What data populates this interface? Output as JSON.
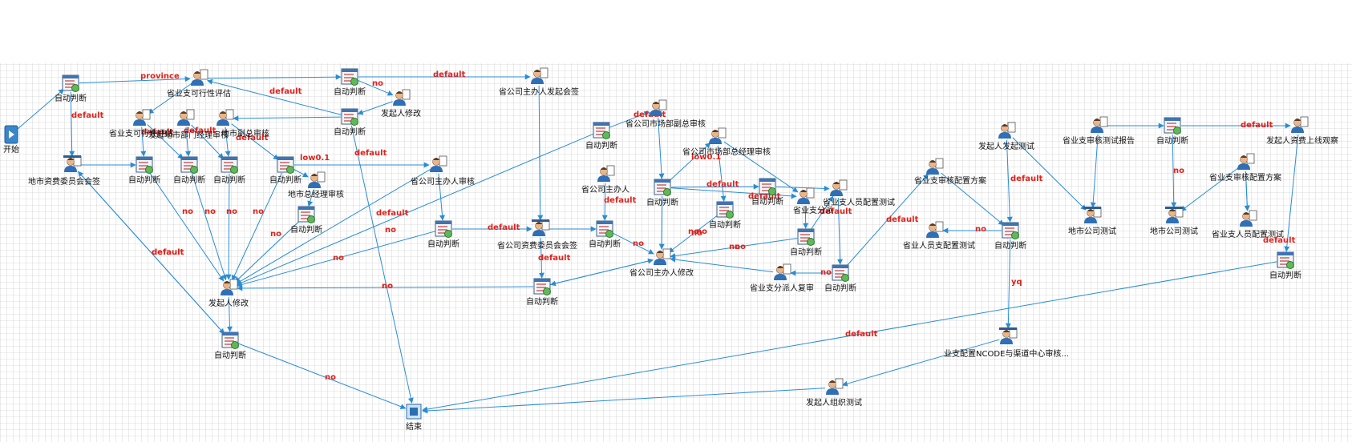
{
  "diagram": {
    "nodes": [
      {
        "id": "n0",
        "label": "开始",
        "icon": "start-icon"
      },
      {
        "id": "n1",
        "label": "自动判断",
        "icon": "auto-judge-icon"
      },
      {
        "id": "n2",
        "label": "省业支可行性评估",
        "icon": "user-task-icon"
      },
      {
        "id": "n3",
        "label": "自动判断",
        "icon": "auto-judge-icon"
      },
      {
        "id": "n4",
        "label": "发起人修改",
        "icon": "user-task-icon"
      },
      {
        "id": "n5",
        "label": "自动判断",
        "icon": "auto-judge-icon"
      },
      {
        "id": "n6",
        "label": "省公司主办人发起会签",
        "icon": "user-task-icon"
      },
      {
        "id": "n7",
        "label": "省业支可行性评估",
        "icon": "user-task-icon"
      },
      {
        "id": "n8",
        "label": "发起地市部门经理审核",
        "icon": "user-task-icon"
      },
      {
        "id": "n9",
        "label": "地市副总审核",
        "icon": "user-task-icon"
      },
      {
        "id": "n10",
        "label": "地市资费委员会会签",
        "icon": "countersign-icon"
      },
      {
        "id": "n11",
        "label": "自动判断",
        "icon": "auto-judge-icon"
      },
      {
        "id": "n12",
        "label": "自动判断",
        "icon": "auto-judge-icon"
      },
      {
        "id": "n13",
        "label": "自动判断",
        "icon": "auto-judge-icon"
      },
      {
        "id": "n14",
        "label": "自动判断",
        "icon": "auto-judge-icon"
      },
      {
        "id": "n15",
        "label": "地市总经理审核",
        "icon": "user-task-icon"
      },
      {
        "id": "n16",
        "label": "自动判断",
        "icon": "auto-judge-icon"
      },
      {
        "id": "n17",
        "label": "省公司主办人审核",
        "icon": "user-task-icon"
      },
      {
        "id": "n18",
        "label": "发起人修改",
        "icon": "user-task-icon"
      },
      {
        "id": "n19",
        "label": "自动判断",
        "icon": "auto-judge-icon"
      },
      {
        "id": "n20",
        "label": "结束",
        "icon": "end-icon"
      },
      {
        "id": "n21",
        "label": "自动判断",
        "icon": "auto-judge-icon"
      },
      {
        "id": "n22",
        "label": "省公司资费委员会会签",
        "icon": "countersign-icon"
      },
      {
        "id": "n23",
        "label": "自动判断",
        "icon": "auto-judge-icon"
      },
      {
        "id": "n24",
        "label": "自动判断",
        "icon": "auto-judge-icon"
      },
      {
        "id": "n25",
        "label": "省公司主办人",
        "icon": "user-task-icon"
      },
      {
        "id": "n26",
        "label": "自动判断",
        "icon": "auto-judge-icon"
      },
      {
        "id": "n27",
        "label": "省公司市场部副总审核",
        "icon": "user-task-icon"
      },
      {
        "id": "n28",
        "label": "省公司市场部总经理审核",
        "icon": "user-task-icon"
      },
      {
        "id": "n29",
        "label": "自动判断",
        "icon": "auto-judge-icon"
      },
      {
        "id": "n30",
        "label": "自动判断",
        "icon": "auto-judge-icon"
      },
      {
        "id": "n31",
        "label": "省业支分派",
        "icon": "user-task-icon"
      },
      {
        "id": "n32",
        "label": "省公司主办人修改",
        "icon": "user-task-icon"
      },
      {
        "id": "n33",
        "label": "省业支人员配置测试",
        "icon": "user-task-icon"
      },
      {
        "id": "n34",
        "label": "自动判断",
        "icon": "auto-judge-icon"
      },
      {
        "id": "n35",
        "label": "省业支分派人复审",
        "icon": "user-task-icon"
      },
      {
        "id": "n36",
        "label": "自动判断",
        "icon": "auto-judge-icon"
      },
      {
        "id": "n37",
        "label": "自动判断",
        "icon": "auto-judge-icon"
      },
      {
        "id": "n38",
        "label": "发起人发起测试",
        "icon": "user-task-icon"
      },
      {
        "id": "n39",
        "label": "省业支审核配置方案",
        "icon": "user-task-icon"
      },
      {
        "id": "n40",
        "label": "省业人员支配置测试",
        "icon": "user-task-icon"
      },
      {
        "id": "n41",
        "label": "自动判断",
        "icon": "auto-judge-icon"
      },
      {
        "id": "n42",
        "label": "地市公司测试",
        "icon": "countersign-icon"
      },
      {
        "id": "n43",
        "label": "省业支审核测试报告",
        "icon": "user-task-icon"
      },
      {
        "id": "n44",
        "label": "自动判断",
        "icon": "auto-judge-icon"
      },
      {
        "id": "n45",
        "label": "地市公司测试",
        "icon": "countersign-icon"
      },
      {
        "id": "n46",
        "label": "发起人资费上线观察",
        "icon": "user-task-icon"
      },
      {
        "id": "n47",
        "label": "省业支审核配置方案",
        "icon": "user-task-icon"
      },
      {
        "id": "n48",
        "label": "省业支人员配置测试",
        "icon": "user-task-icon"
      },
      {
        "id": "n49",
        "label": "自动判断",
        "icon": "auto-judge-icon"
      },
      {
        "id": "n50",
        "label": "业支配置NCODE与渠道中心审核...",
        "icon": "countersign-icon"
      },
      {
        "id": "n51",
        "label": "发起人组织测试",
        "icon": "user-task-icon"
      }
    ],
    "edge_labels": [
      {
        "id": "e1",
        "text": "province"
      },
      {
        "id": "e2",
        "text": "no"
      },
      {
        "id": "e3",
        "text": "default"
      },
      {
        "id": "e4",
        "text": "default"
      },
      {
        "id": "e5",
        "text": "default"
      },
      {
        "id": "e6",
        "text": "default"
      },
      {
        "id": "e7",
        "text": "default"
      },
      {
        "id": "e8",
        "text": "default"
      },
      {
        "id": "e9",
        "text": "default"
      },
      {
        "id": "e10",
        "text": "low0.1"
      },
      {
        "id": "e11",
        "text": "default"
      },
      {
        "id": "e12",
        "text": "no"
      },
      {
        "id": "e13",
        "text": "no"
      },
      {
        "id": "e14",
        "text": "no"
      },
      {
        "id": "e15",
        "text": "no"
      },
      {
        "id": "e16",
        "text": "no"
      },
      {
        "id": "e17",
        "text": "no"
      },
      {
        "id": "e18",
        "text": "no"
      },
      {
        "id": "e19",
        "text": "default"
      },
      {
        "id": "e20",
        "text": "no"
      },
      {
        "id": "e21",
        "text": "no"
      },
      {
        "id": "e22",
        "text": "no"
      },
      {
        "id": "e23",
        "text": "default"
      },
      {
        "id": "e24",
        "text": "default"
      },
      {
        "id": "e25",
        "text": "default"
      },
      {
        "id": "e26",
        "text": "default"
      },
      {
        "id": "e27",
        "text": "default"
      },
      {
        "id": "e28",
        "text": "low0.1"
      },
      {
        "id": "e29",
        "text": "no"
      },
      {
        "id": "e30",
        "text": "no"
      },
      {
        "id": "e31",
        "text": "default"
      },
      {
        "id": "e32",
        "text": "no"
      },
      {
        "id": "e33",
        "text": "no"
      },
      {
        "id": "e34",
        "text": "default"
      },
      {
        "id": "e35",
        "text": "default"
      },
      {
        "id": "e36",
        "text": "default"
      },
      {
        "id": "e37",
        "text": "no"
      },
      {
        "id": "e38",
        "text": "no"
      },
      {
        "id": "e39",
        "text": "default"
      },
      {
        "id": "e40",
        "text": "default"
      },
      {
        "id": "e41",
        "text": "no"
      },
      {
        "id": "e42",
        "text": "yq"
      },
      {
        "id": "e43",
        "text": "default"
      },
      {
        "id": "e44",
        "text": "no"
      },
      {
        "id": "e45",
        "text": "default"
      },
      {
        "id": "e46",
        "text": "no"
      }
    ]
  }
}
